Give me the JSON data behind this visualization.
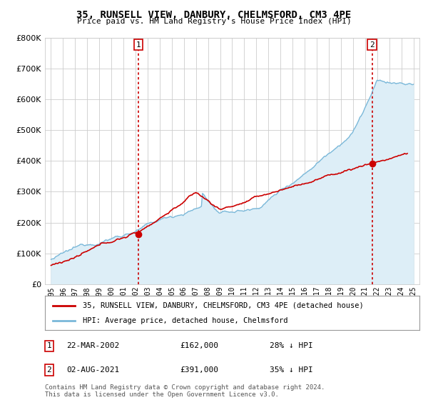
{
  "title": "35, RUNSELL VIEW, DANBURY, CHELMSFORD, CM3 4PE",
  "subtitle": "Price paid vs. HM Land Registry's House Price Index (HPI)",
  "ylim": [
    0,
    800000
  ],
  "yticks": [
    0,
    100000,
    200000,
    300000,
    400000,
    500000,
    600000,
    700000,
    800000
  ],
  "x_start_year": 1995,
  "x_end_year": 2025,
  "hpi_color": "#7ab8d9",
  "hpi_fill_color": "#ddeef7",
  "price_color": "#cc0000",
  "vline_color": "#cc0000",
  "marker1_year": 2002.22,
  "marker1_price": 162000,
  "marker2_year": 2021.58,
  "marker2_price": 391000,
  "legend_label_red": "35, RUNSELL VIEW, DANBURY, CHELMSFORD, CM3 4PE (detached house)",
  "legend_label_blue": "HPI: Average price, detached house, Chelmsford",
  "annotation1_label": "1",
  "annotation1_date": "22-MAR-2002",
  "annotation1_price": "£162,000",
  "annotation1_hpi": "28% ↓ HPI",
  "annotation2_label": "2",
  "annotation2_date": "02-AUG-2021",
  "annotation2_price": "£391,000",
  "annotation2_hpi": "35% ↓ HPI",
  "footer": "Contains HM Land Registry data © Crown copyright and database right 2024.\nThis data is licensed under the Open Government Licence v3.0.",
  "bg_color": "#ffffff",
  "grid_color": "#cccccc"
}
